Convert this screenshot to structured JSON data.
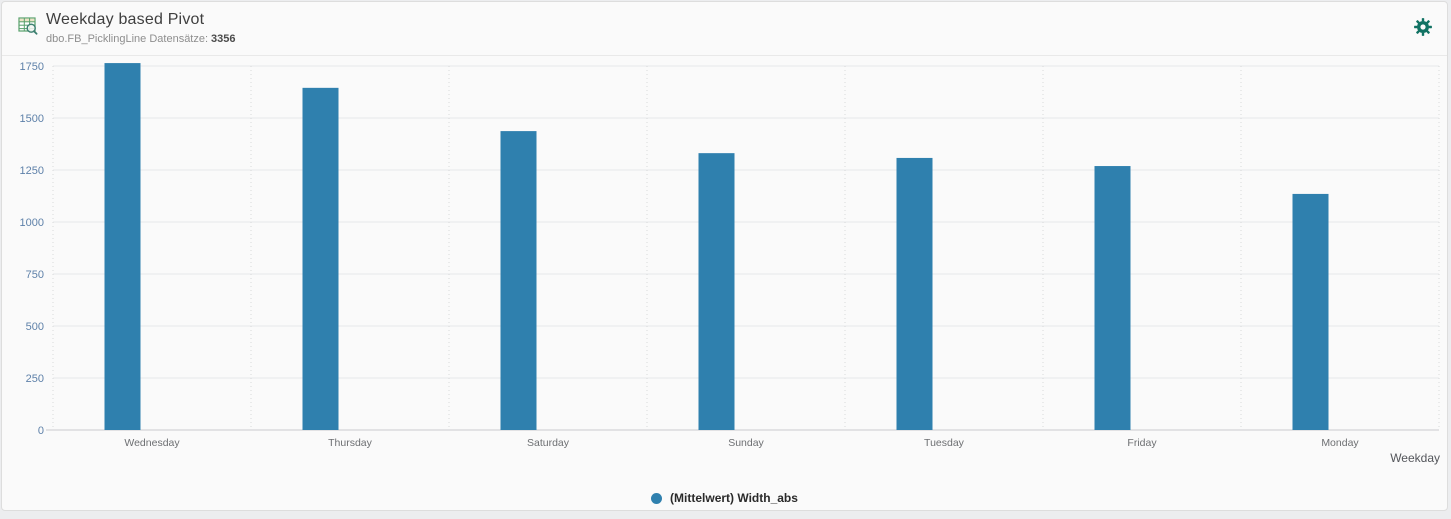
{
  "header": {
    "title": "Weekday based Pivot",
    "subtitle_prefix": "dbo.FB_PicklingLine Datensätze:",
    "record_count": "3356",
    "pivot_icon": "pivot-table-search-icon",
    "settings_icon": "gear-icon"
  },
  "chart_data": {
    "type": "bar",
    "title": "Weekday based Pivot",
    "categories": [
      "Wednesday",
      "Thursday",
      "Saturday",
      "Sunday",
      "Tuesday",
      "Friday",
      "Monday"
    ],
    "series": [
      {
        "name": "(Mittelwert) Width_abs",
        "values": [
          1764,
          1645,
          1437,
          1331,
          1308,
          1269,
          1135
        ]
      }
    ],
    "xlabel": "Weekday",
    "ylabel": "",
    "ylim": [
      0,
      1750
    ],
    "ytick_step": 250,
    "grid": true,
    "legend_position": "bottom",
    "bar_color": "#2F80AE"
  },
  "colors": {
    "accent_blue": "#2F80AE",
    "y_label_blue": "#5E81A9",
    "x_label_gray": "#6D6F72",
    "axis_title_gray": "#54565B",
    "gear_teal": "#117263",
    "table_icon_green": "#57A06B",
    "card_background": "#FAFAFA",
    "page_background": "#ECEDEF"
  }
}
